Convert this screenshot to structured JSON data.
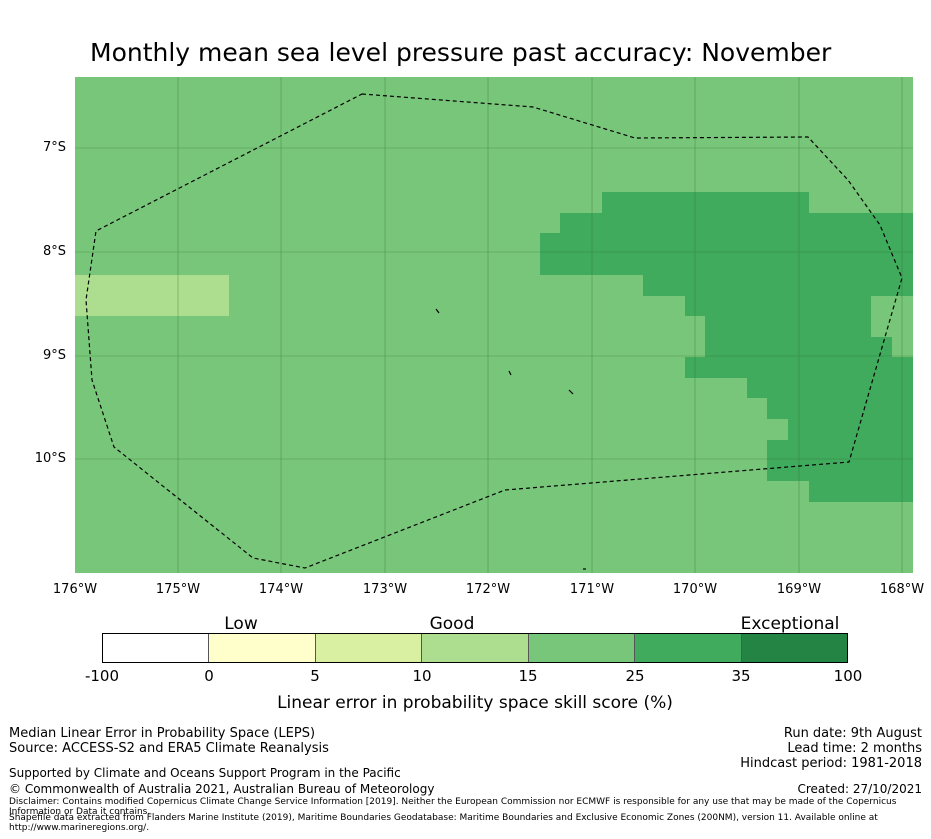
{
  "title": "Monthly mean sea level pressure past accuracy: November",
  "map": {
    "lat_labels": [
      "7°S",
      "8°S",
      "9°S",
      "10°S"
    ],
    "lon_labels": [
      "176°W",
      "175°W",
      "174°W",
      "173°W",
      "172°W",
      "171°W",
      "170°W",
      "169°W",
      "168°W"
    ],
    "lon_range": [
      -176,
      -167.9
    ],
    "lat_range": [
      -11.1,
      -6.3
    ],
    "colors": {
      "good_15_25": "#78c679",
      "good_10_15": "#addd8e",
      "exceptional_25_35": "#41ab5d"
    }
  },
  "legend": {
    "categories": [
      "Low",
      "Good",
      "Exceptional"
    ],
    "ticks": [
      "-100",
      "0",
      "5",
      "10",
      "15",
      "25",
      "35",
      "100"
    ],
    "colors": [
      "#ffffff",
      "#ffffcc",
      "#d9f0a3",
      "#addd8e",
      "#78c679",
      "#41ab5d",
      "#238443"
    ],
    "label": "Linear error in probability space skill score (%)"
  },
  "footer": {
    "left1": "Median Linear Error in Probability Space (LEPS)",
    "left2": "Source: ACCESS-S2 and ERA5 Climate Reanalysis",
    "support": "Supported by Climate and Oceans Support Program in the Pacific",
    "copyright": "© Commonwealth of Australia 2021, Australian Bureau of Meteorology",
    "disclaimer": "Disclaimer: Contains modified Copernicus Climate Change Service Information [2019]. Neither the European Commission nor ECMWF is responsible for any use that may be made of the Copernicus Information or Data it contains.",
    "shapefile": "Shapefile data extracted from Flanders Marine Institute (2019), Maritime Boundaries Geodatabase: Maritime Boundaries and Exclusive Economic Zones (200NM), version 11. Available online at http://www.marineregions.org/.",
    "run_date": "Run date: 9th August",
    "lead_time": "Lead time: 2 months",
    "hindcast": "Hindcast period: 1981-2018",
    "created": "Created: 27/10/2021"
  }
}
